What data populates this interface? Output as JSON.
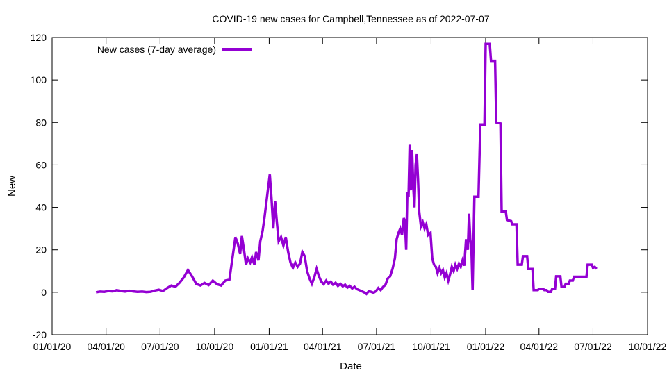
{
  "chart_data": {
    "type": "line",
    "title": "COVID-19 new cases for Campbell,Tennessee as of 2022-07-07",
    "xlabel": "Date",
    "ylabel": "New",
    "xlim": [
      "2020-01-01",
      "2022-10-01"
    ],
    "ylim": [
      -20,
      120
    ],
    "x_ticks": [
      {
        "date": "2020-01-01",
        "label": "01/01/20"
      },
      {
        "date": "2020-04-01",
        "label": "04/01/20"
      },
      {
        "date": "2020-07-01",
        "label": "07/01/20"
      },
      {
        "date": "2020-10-01",
        "label": "10/01/20"
      },
      {
        "date": "2021-01-01",
        "label": "01/01/21"
      },
      {
        "date": "2021-04-01",
        "label": "04/01/21"
      },
      {
        "date": "2021-07-01",
        "label": "07/01/21"
      },
      {
        "date": "2021-10-01",
        "label": "10/01/21"
      },
      {
        "date": "2022-01-01",
        "label": "01/01/22"
      },
      {
        "date": "2022-04-01",
        "label": "04/01/22"
      },
      {
        "date": "2022-07-01",
        "label": "07/01/22"
      },
      {
        "date": "2022-10-01",
        "label": "10/01/22"
      }
    ],
    "y_ticks": [
      -20,
      0,
      20,
      40,
      60,
      80,
      100,
      120
    ],
    "grid": false,
    "legend_position": "top-left",
    "series": [
      {
        "name": "New cases (7-day average)",
        "color": "#9400d3",
        "points": [
          [
            "2020-03-15",
            0.0
          ],
          [
            "2020-03-22",
            0.3
          ],
          [
            "2020-03-29",
            0.2
          ],
          [
            "2020-04-05",
            0.6
          ],
          [
            "2020-04-12",
            0.4
          ],
          [
            "2020-04-19",
            1.0
          ],
          [
            "2020-04-26",
            0.6
          ],
          [
            "2020-05-03",
            0.3
          ],
          [
            "2020-05-10",
            0.7
          ],
          [
            "2020-05-17",
            0.4
          ],
          [
            "2020-05-24",
            0.2
          ],
          [
            "2020-06-01",
            0.3
          ],
          [
            "2020-06-08",
            0.1
          ],
          [
            "2020-06-15",
            0.2
          ],
          [
            "2020-06-22",
            0.8
          ],
          [
            "2020-06-29",
            1.2
          ],
          [
            "2020-07-06",
            0.6
          ],
          [
            "2020-07-13",
            2.0
          ],
          [
            "2020-07-20",
            3.2
          ],
          [
            "2020-07-27",
            2.6
          ],
          [
            "2020-08-03",
            4.5
          ],
          [
            "2020-08-10",
            7.0
          ],
          [
            "2020-08-17",
            10.5
          ],
          [
            "2020-08-24",
            7.5
          ],
          [
            "2020-08-31",
            4.0
          ],
          [
            "2020-09-07",
            3.2
          ],
          [
            "2020-09-14",
            4.4
          ],
          [
            "2020-09-21",
            3.4
          ],
          [
            "2020-09-28",
            5.5
          ],
          [
            "2020-10-05",
            3.8
          ],
          [
            "2020-10-12",
            3.2
          ],
          [
            "2020-10-19",
            5.5
          ],
          [
            "2020-10-26",
            6.0
          ],
          [
            "2020-11-02",
            20.0
          ],
          [
            "2020-11-05",
            26.0
          ],
          [
            "2020-11-09",
            23.0
          ],
          [
            "2020-11-13",
            18.0
          ],
          [
            "2020-11-16",
            26.5
          ],
          [
            "2020-11-19",
            21.0
          ],
          [
            "2020-11-23",
            13.0
          ],
          [
            "2020-11-26",
            16.0
          ],
          [
            "2020-11-30",
            14.0
          ],
          [
            "2020-12-03",
            16.5
          ],
          [
            "2020-12-07",
            13.0
          ],
          [
            "2020-12-10",
            19.0
          ],
          [
            "2020-12-14",
            15.0
          ],
          [
            "2020-12-17",
            24.0
          ],
          [
            "2020-12-21",
            29.0
          ],
          [
            "2020-12-24",
            35.0
          ],
          [
            "2020-12-28",
            44.0
          ],
          [
            "2020-12-31",
            51.0
          ],
          [
            "2021-01-02",
            55.5
          ],
          [
            "2021-01-05",
            44.0
          ],
          [
            "2021-01-08",
            30.0
          ],
          [
            "2021-01-11",
            43.0
          ],
          [
            "2021-01-14",
            33.0
          ],
          [
            "2021-01-17",
            24.0
          ],
          [
            "2021-01-21",
            26.0
          ],
          [
            "2021-01-25",
            22.0
          ],
          [
            "2021-01-29",
            26.0
          ],
          [
            "2021-02-02",
            19.0
          ],
          [
            "2021-02-06",
            14.0
          ],
          [
            "2021-02-10",
            11.5
          ],
          [
            "2021-02-14",
            14.0
          ],
          [
            "2021-02-18",
            12.0
          ],
          [
            "2021-02-22",
            13.5
          ],
          [
            "2021-02-26",
            19.0
          ],
          [
            "2021-03-02",
            17.0
          ],
          [
            "2021-03-06",
            10.0
          ],
          [
            "2021-03-10",
            6.5
          ],
          [
            "2021-03-14",
            4.0
          ],
          [
            "2021-03-18",
            7.0
          ],
          [
            "2021-03-22",
            11.0
          ],
          [
            "2021-03-26",
            7.5
          ],
          [
            "2021-03-30",
            5.0
          ],
          [
            "2021-04-03",
            3.8
          ],
          [
            "2021-04-07",
            5.5
          ],
          [
            "2021-04-11",
            4.0
          ],
          [
            "2021-04-15",
            5.0
          ],
          [
            "2021-04-19",
            3.5
          ],
          [
            "2021-04-23",
            4.5
          ],
          [
            "2021-04-27",
            3.0
          ],
          [
            "2021-05-01",
            4.0
          ],
          [
            "2021-05-05",
            2.8
          ],
          [
            "2021-05-09",
            3.6
          ],
          [
            "2021-05-13",
            2.2
          ],
          [
            "2021-05-17",
            3.0
          ],
          [
            "2021-05-21",
            1.8
          ],
          [
            "2021-05-25",
            2.6
          ],
          [
            "2021-05-29",
            1.5
          ],
          [
            "2021-06-02",
            1.0
          ],
          [
            "2021-06-06",
            0.5
          ],
          [
            "2021-06-10",
            0.0
          ],
          [
            "2021-06-14",
            -0.8
          ],
          [
            "2021-06-18",
            0.5
          ],
          [
            "2021-06-22",
            0.2
          ],
          [
            "2021-06-26",
            -0.2
          ],
          [
            "2021-06-30",
            0.5
          ],
          [
            "2021-07-04",
            2.0
          ],
          [
            "2021-07-08",
            1.0
          ],
          [
            "2021-07-12",
            2.5
          ],
          [
            "2021-07-16",
            3.5
          ],
          [
            "2021-07-20",
            6.5
          ],
          [
            "2021-07-24",
            7.5
          ],
          [
            "2021-07-28",
            11.0
          ],
          [
            "2021-08-01",
            16.0
          ],
          [
            "2021-08-04",
            25.0
          ],
          [
            "2021-08-07",
            28.0
          ],
          [
            "2021-08-10",
            30.0
          ],
          [
            "2021-08-13",
            27.0
          ],
          [
            "2021-08-16",
            35.0
          ],
          [
            "2021-08-18",
            33.0
          ],
          [
            "2021-08-20",
            20.0
          ],
          [
            "2021-08-22",
            47.0
          ],
          [
            "2021-08-24",
            45.0
          ],
          [
            "2021-08-26",
            69.5
          ],
          [
            "2021-08-28",
            48.0
          ],
          [
            "2021-08-30",
            67.0
          ],
          [
            "2021-09-01",
            50.0
          ],
          [
            "2021-09-03",
            40.0
          ],
          [
            "2021-09-05",
            60.0
          ],
          [
            "2021-09-07",
            65.0
          ],
          [
            "2021-09-09",
            53.0
          ],
          [
            "2021-09-11",
            38.0
          ],
          [
            "2021-09-14",
            31.0
          ],
          [
            "2021-09-17",
            33.0
          ],
          [
            "2021-09-20",
            30.0
          ],
          [
            "2021-09-23",
            32.0
          ],
          [
            "2021-09-26",
            27.0
          ],
          [
            "2021-09-30",
            28.0
          ],
          [
            "2021-10-03",
            16.0
          ],
          [
            "2021-10-06",
            13.0
          ],
          [
            "2021-10-09",
            12.0
          ],
          [
            "2021-10-12",
            9.0
          ],
          [
            "2021-10-15",
            11.5
          ],
          [
            "2021-10-18",
            9.0
          ],
          [
            "2021-10-21",
            10.5
          ],
          [
            "2021-10-24",
            7.0
          ],
          [
            "2021-10-27",
            9.0
          ],
          [
            "2021-10-30",
            5.5
          ],
          [
            "2021-11-02",
            8.5
          ],
          [
            "2021-11-05",
            12.0
          ],
          [
            "2021-11-08",
            10.0
          ],
          [
            "2021-11-11",
            13.0
          ],
          [
            "2021-11-14",
            11.0
          ],
          [
            "2021-11-17",
            13.5
          ],
          [
            "2021-11-20",
            12.0
          ],
          [
            "2021-11-23",
            15.0
          ],
          [
            "2021-11-26",
            12.5
          ],
          [
            "2021-11-29",
            25.0
          ],
          [
            "2021-12-02",
            20.0
          ],
          [
            "2021-12-04",
            37.0
          ],
          [
            "2021-12-06",
            25.0
          ],
          [
            "2021-12-08",
            21.0
          ],
          [
            "2021-12-10",
            1.0
          ],
          [
            "2021-12-13",
            45.0
          ],
          [
            "2021-12-20",
            45.0
          ],
          [
            "2021-12-23",
            79.0
          ],
          [
            "2021-12-30",
            79.0
          ],
          [
            "2022-01-01",
            117.0
          ],
          [
            "2022-01-08",
            117.0
          ],
          [
            "2022-01-10",
            109.0
          ],
          [
            "2022-01-17",
            109.0
          ],
          [
            "2022-01-19",
            80.0
          ],
          [
            "2022-01-26",
            79.5
          ],
          [
            "2022-01-28",
            38.0
          ],
          [
            "2022-02-04",
            38.0
          ],
          [
            "2022-02-06",
            34.0
          ],
          [
            "2022-02-13",
            33.5
          ],
          [
            "2022-02-15",
            32.0
          ],
          [
            "2022-02-22",
            32.0
          ],
          [
            "2022-02-24",
            13.0
          ],
          [
            "2022-03-03",
            13.0
          ],
          [
            "2022-03-05",
            17.0
          ],
          [
            "2022-03-12",
            17.0
          ],
          [
            "2022-03-14",
            11.0
          ],
          [
            "2022-03-21",
            11.0
          ],
          [
            "2022-03-23",
            1.0
          ],
          [
            "2022-03-30",
            1.0
          ],
          [
            "2022-04-01",
            1.7
          ],
          [
            "2022-04-08",
            1.7
          ],
          [
            "2022-04-10",
            1.0
          ],
          [
            "2022-04-14",
            1.0
          ],
          [
            "2022-04-16",
            0.2
          ],
          [
            "2022-04-21",
            0.2
          ],
          [
            "2022-04-23",
            1.5
          ],
          [
            "2022-04-28",
            1.5
          ],
          [
            "2022-04-30",
            7.5
          ],
          [
            "2022-05-07",
            7.5
          ],
          [
            "2022-05-09",
            2.5
          ],
          [
            "2022-05-14",
            2.5
          ],
          [
            "2022-05-16",
            4.0
          ],
          [
            "2022-05-21",
            4.0
          ],
          [
            "2022-05-23",
            5.5
          ],
          [
            "2022-05-28",
            5.5
          ],
          [
            "2022-05-30",
            7.3
          ],
          [
            "2022-06-20",
            7.3
          ],
          [
            "2022-06-22",
            13.0
          ],
          [
            "2022-06-29",
            13.0
          ],
          [
            "2022-07-01",
            11.5
          ],
          [
            "2022-07-04",
            12.0
          ],
          [
            "2022-07-07",
            11.0
          ]
        ]
      }
    ]
  }
}
